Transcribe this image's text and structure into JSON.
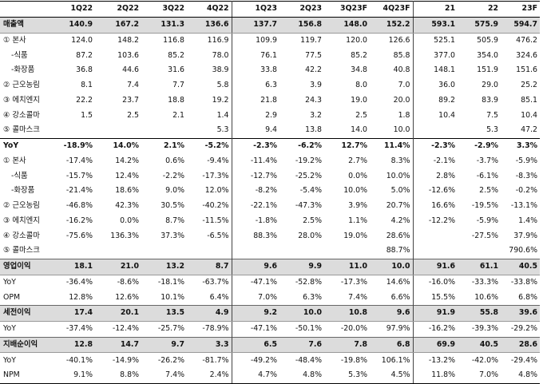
{
  "columns": [
    "",
    "1Q22",
    "2Q22",
    "3Q22",
    "4Q22",
    "1Q23",
    "2Q23",
    "3Q23F",
    "4Q23F",
    "21",
    "22",
    "23F"
  ],
  "rows": [
    {
      "label": "매출액",
      "style": "hl",
      "cells": [
        "140.9",
        "167.2",
        "131.3",
        "136.6",
        "137.7",
        "156.8",
        "148.0",
        "152.2",
        "593.1",
        "575.9",
        "594.7"
      ]
    },
    {
      "label": "① 본사",
      "style": "",
      "cells": [
        "124.0",
        "148.2",
        "116.8",
        "116.9",
        "109.9",
        "119.7",
        "120.0",
        "126.6",
        "525.1",
        "505.9",
        "476.2"
      ]
    },
    {
      "label": "-식품",
      "style": "sub",
      "cells": [
        "87.2",
        "103.6",
        "85.2",
        "78.0",
        "76.1",
        "77.5",
        "85.2",
        "85.8",
        "377.0",
        "354.0",
        "324.6"
      ]
    },
    {
      "label": "-화장품",
      "style": "sub",
      "cells": [
        "36.8",
        "44.6",
        "31.6",
        "38.9",
        "33.8",
        "42.2",
        "34.8",
        "40.8",
        "148.1",
        "151.9",
        "151.6"
      ]
    },
    {
      "label": "② 근오농림",
      "style": "",
      "cells": [
        "8.1",
        "7.4",
        "7.7",
        "5.8",
        "6.3",
        "3.9",
        "8.0",
        "7.0",
        "36.0",
        "29.0",
        "25.2"
      ]
    },
    {
      "label": "③ 에치엔지",
      "style": "",
      "cells": [
        "22.2",
        "23.7",
        "18.8",
        "19.2",
        "21.8",
        "24.3",
        "19.0",
        "20.0",
        "89.2",
        "83.9",
        "85.1"
      ]
    },
    {
      "label": "④ 강소콜마",
      "style": "",
      "cells": [
        "1.5",
        "2.5",
        "2.1",
        "1.4",
        "2.9",
        "3.2",
        "2.5",
        "1.8",
        "10.4",
        "7.5",
        "10.4"
      ]
    },
    {
      "label": "⑤ 콜마스크",
      "style": "",
      "cells": [
        "",
        "",
        "",
        "5.3",
        "9.4",
        "13.8",
        "14.0",
        "10.0",
        "",
        "5.3",
        "47.2"
      ]
    },
    {
      "label": "YoY",
      "style": "yoy",
      "cells": [
        "-18.9%",
        "14.0%",
        "2.1%",
        "-5.2%",
        "-2.3%",
        "-6.2%",
        "12.7%",
        "11.4%",
        "-2.3%",
        "-2.9%",
        "3.3%"
      ]
    },
    {
      "label": "① 본사",
      "style": "",
      "cells": [
        "-17.4%",
        "14.2%",
        "0.6%",
        "-9.4%",
        "-11.4%",
        "-19.2%",
        "2.7%",
        "8.3%",
        "-2.1%",
        "-3.7%",
        "-5.9%"
      ]
    },
    {
      "label": "-식품",
      "style": "sub",
      "cells": [
        "-15.7%",
        "12.4%",
        "-2.2%",
        "-17.3%",
        "-12.7%",
        "-25.2%",
        "0.0%",
        "10.0%",
        "2.8%",
        "-6.1%",
        "-8.3%"
      ]
    },
    {
      "label": "-화장품",
      "style": "sub",
      "cells": [
        "-21.4%",
        "18.6%",
        "9.0%",
        "12.0%",
        "-8.2%",
        "-5.4%",
        "10.0%",
        "5.0%",
        "-12.6%",
        "2.5%",
        "-0.2%"
      ]
    },
    {
      "label": "② 근오농림",
      "style": "",
      "cells": [
        "-46.8%",
        "42.3%",
        "30.5%",
        "-40.2%",
        "-22.1%",
        "-47.3%",
        "3.9%",
        "20.7%",
        "16.6%",
        "-19.5%",
        "-13.1%"
      ]
    },
    {
      "label": "③ 에치엔지",
      "style": "",
      "cells": [
        "-16.2%",
        "0.0%",
        "8.7%",
        "-11.5%",
        "-1.8%",
        "2.5%",
        "1.1%",
        "4.2%",
        "-12.2%",
        "-5.9%",
        "1.4%"
      ]
    },
    {
      "label": "④ 강소콜마",
      "style": "",
      "cells": [
        "-75.6%",
        "136.3%",
        "37.3%",
        "-6.5%",
        "88.3%",
        "28.0%",
        "19.0%",
        "28.6%",
        "",
        "-27.5%",
        "37.9%"
      ]
    },
    {
      "label": "⑤ 콜마스크",
      "style": "",
      "cells": [
        "",
        "",
        "",
        "",
        "",
        "",
        "",
        "88.7%",
        "",
        "",
        "790.6%"
      ]
    },
    {
      "label": "영업이익",
      "style": "hl",
      "cells": [
        "18.1",
        "21.0",
        "13.2",
        "8.7",
        "9.6",
        "9.9",
        "11.0",
        "10.0",
        "91.6",
        "61.1",
        "40.5"
      ]
    },
    {
      "label": "YoY",
      "style": "",
      "cells": [
        "-36.4%",
        "-8.6%",
        "-18.1%",
        "-63.7%",
        "-47.1%",
        "-52.8%",
        "-17.3%",
        "14.6%",
        "-16.0%",
        "-33.3%",
        "-33.8%"
      ]
    },
    {
      "label": "OPM",
      "style": "",
      "cells": [
        "12.8%",
        "12.6%",
        "10.1%",
        "6.4%",
        "7.0%",
        "6.3%",
        "7.4%",
        "6.6%",
        "15.5%",
        "10.6%",
        "6.8%"
      ]
    },
    {
      "label": "세전이익",
      "style": "hl",
      "cells": [
        "17.4",
        "20.1",
        "13.5",
        "4.9",
        "9.2",
        "10.0",
        "10.8",
        "9.6",
        "91.9",
        "55.8",
        "39.6"
      ]
    },
    {
      "label": "YoY",
      "style": "",
      "cells": [
        "-37.4%",
        "-12.4%",
        "-25.7%",
        "-78.9%",
        "-47.1%",
        "-50.1%",
        "-20.0%",
        "97.9%",
        "-16.2%",
        "-39.3%",
        "-29.2%"
      ]
    },
    {
      "label": "지배순이익",
      "style": "hl",
      "cells": [
        "12.8",
        "14.7",
        "9.7",
        "3.3",
        "6.5",
        "7.6",
        "7.8",
        "6.8",
        "69.9",
        "40.5",
        "28.6"
      ]
    },
    {
      "label": "YoY",
      "style": "",
      "cells": [
        "-40.1%",
        "-14.9%",
        "-26.2%",
        "-81.7%",
        "-49.2%",
        "-48.4%",
        "-19.8%",
        "106.1%",
        "-13.2%",
        "-42.0%",
        "-29.4%"
      ]
    },
    {
      "label": "NPM",
      "style": "last",
      "cells": [
        "9.1%",
        "8.8%",
        "7.4%",
        "2.4%",
        "4.7%",
        "4.8%",
        "5.3%",
        "4.5%",
        "11.8%",
        "7.0%",
        "4.8%"
      ]
    }
  ]
}
